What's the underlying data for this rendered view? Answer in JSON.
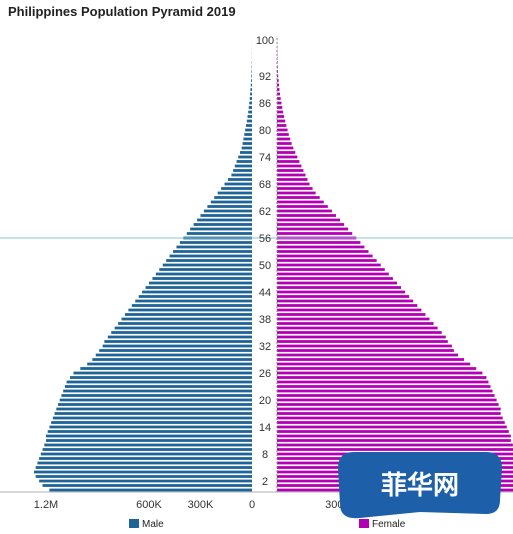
{
  "chart_data": {
    "type": "bar",
    "orientation": "horizontal-pyramid",
    "title": "Philippines Population Pyramid 2019",
    "colors": {
      "male": "#1e6496",
      "female": "#b400b4"
    },
    "ages": [
      0,
      1,
      2,
      3,
      4,
      5,
      6,
      7,
      8,
      9,
      10,
      11,
      12,
      13,
      14,
      15,
      16,
      17,
      18,
      19,
      20,
      21,
      22,
      23,
      24,
      25,
      26,
      27,
      28,
      29,
      30,
      31,
      32,
      33,
      34,
      35,
      36,
      37,
      38,
      39,
      40,
      41,
      42,
      43,
      44,
      45,
      46,
      47,
      48,
      49,
      50,
      51,
      52,
      53,
      54,
      55,
      56,
      57,
      58,
      59,
      60,
      61,
      62,
      63,
      64,
      65,
      66,
      67,
      68,
      69,
      70,
      71,
      72,
      73,
      74,
      75,
      76,
      77,
      78,
      79,
      80,
      81,
      82,
      83,
      84,
      85,
      86,
      87,
      88,
      89,
      90,
      91,
      92,
      93,
      94,
      95,
      96,
      97,
      98,
      99,
      100
    ],
    "series": [
      {
        "name": "Male",
        "values": [
          1180000,
          1220000,
          1240000,
          1260000,
          1270000,
          1260000,
          1250000,
          1240000,
          1230000,
          1220000,
          1210000,
          1200000,
          1200000,
          1190000,
          1180000,
          1170000,
          1160000,
          1150000,
          1140000,
          1130000,
          1120000,
          1110000,
          1100000,
          1090000,
          1080000,
          1060000,
          1040000,
          1000000,
          960000,
          930000,
          910000,
          890000,
          870000,
          860000,
          840000,
          820000,
          800000,
          780000,
          760000,
          740000,
          720000,
          700000,
          680000,
          660000,
          640000,
          620000,
          600000,
          580000,
          560000,
          540000,
          520000,
          500000,
          480000,
          460000,
          440000,
          420000,
          400000,
          380000,
          360000,
          340000,
          320000,
          300000,
          280000,
          260000,
          240000,
          220000,
          200000,
          180000,
          160000,
          140000,
          120000,
          110000,
          100000,
          90000,
          80000,
          70000,
          60000,
          55000,
          50000,
          45000,
          40000,
          35000,
          30000,
          26000,
          22000,
          19000,
          16000,
          13000,
          11000,
          9000,
          7000,
          5000,
          4000,
          3000,
          2000,
          1500,
          1000,
          800,
          500,
          300,
          100
        ]
      },
      {
        "name": "Female",
        "values": [
          1170000,
          1200000,
          1210000,
          1220000,
          1220000,
          1210000,
          1200000,
          1190000,
          1180000,
          1170000,
          1160000,
          1150000,
          1150000,
          1140000,
          1130000,
          1120000,
          1110000,
          1100000,
          1100000,
          1090000,
          1080000,
          1070000,
          1060000,
          1050000,
          1040000,
          1030000,
          1010000,
          980000,
          950000,
          920000,
          890000,
          870000,
          860000,
          840000,
          830000,
          810000,
          790000,
          770000,
          750000,
          730000,
          710000,
          690000,
          670000,
          650000,
          630000,
          610000,
          590000,
          570000,
          550000,
          530000,
          510000,
          490000,
          470000,
          450000,
          430000,
          410000,
          390000,
          370000,
          350000,
          330000,
          310000,
          290000,
          270000,
          250000,
          230000,
          210000,
          190000,
          175000,
          160000,
          150000,
          140000,
          130000,
          120000,
          110000,
          100000,
          90000,
          80000,
          72000,
          65000,
          58000,
          52000,
          46000,
          40000,
          35000,
          30000,
          26000,
          22000,
          18000,
          15000,
          12000,
          10000,
          8000,
          6000,
          5000,
          4000,
          3000,
          2000,
          1500,
          1000,
          600,
          200
        ]
      }
    ],
    "age_tick_labels": [
      "100",
      "92",
      "86",
      "80",
      "74",
      "68",
      "62",
      "56",
      "50",
      "44",
      "38",
      "32",
      "26",
      "20",
      "14",
      "8",
      "2"
    ],
    "x_tick_labels_male": [
      "1.2M",
      "600K",
      "300K",
      "0"
    ],
    "x_tick_labels_female": [
      "300K"
    ],
    "legend": [
      "Male",
      "Female"
    ],
    "legend_position": "bottom",
    "watermark": "菲华网"
  }
}
